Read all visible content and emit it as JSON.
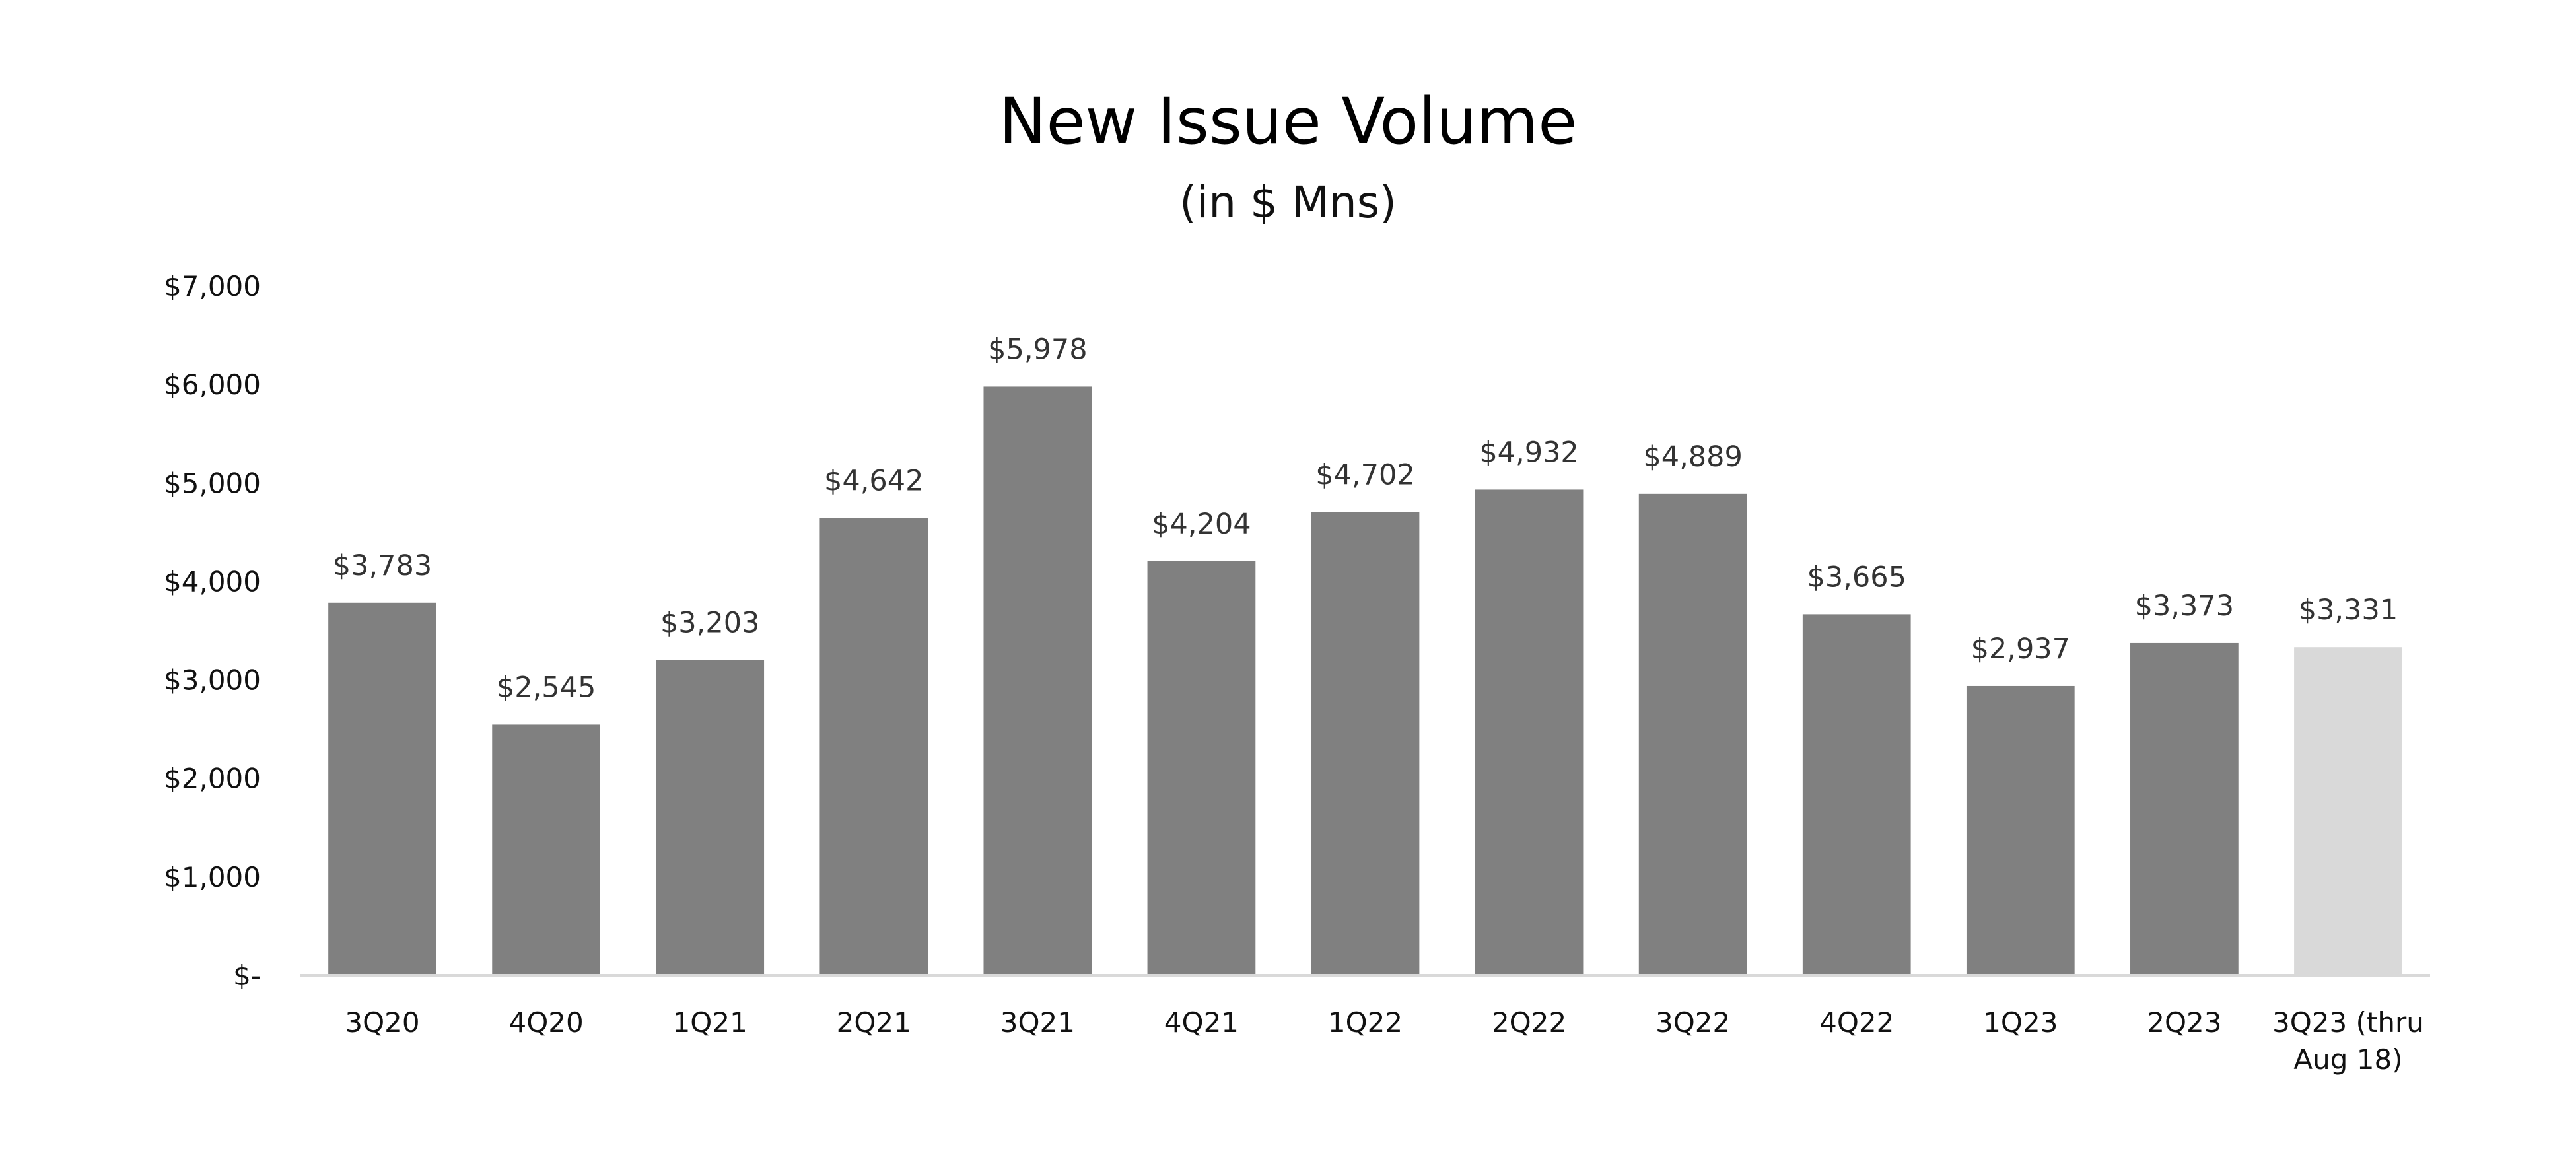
{
  "chart_data": {
    "type": "bar",
    "title": "New Issue Volume",
    "subtitle": "(in $ Mns)",
    "xlabel": "",
    "ylabel": "",
    "ylim": [
      0,
      7000
    ],
    "grid": false,
    "legend": "none",
    "y_ticks": [
      {
        "value": 0,
        "label": "$-"
      },
      {
        "value": 1000,
        "label": "$1,000"
      },
      {
        "value": 2000,
        "label": "$2,000"
      },
      {
        "value": 3000,
        "label": "$3,000"
      },
      {
        "value": 4000,
        "label": "$4,000"
      },
      {
        "value": 5000,
        "label": "$5,000"
      },
      {
        "value": 6000,
        "label": "$6,000"
      },
      {
        "value": 7000,
        "label": "$7,000"
      }
    ],
    "bars": [
      {
        "category": "3Q20",
        "value": 3783,
        "label": "$3,783"
      },
      {
        "category": "4Q20",
        "value": 2545,
        "label": "$2,545"
      },
      {
        "category": "1Q21",
        "value": 3203,
        "label": "$3,203"
      },
      {
        "category": "2Q21",
        "value": 4642,
        "label": "$4,642"
      },
      {
        "category": "3Q21",
        "value": 5978,
        "label": "$5,978"
      },
      {
        "category": "4Q21",
        "value": 4204,
        "label": "$4,204"
      },
      {
        "category": "1Q22",
        "value": 4702,
        "label": "$4,702"
      },
      {
        "category": "2Q22",
        "value": 4932,
        "label": "$4,932"
      },
      {
        "category": "3Q22",
        "value": 4889,
        "label": "$4,889"
      },
      {
        "category": "4Q22",
        "value": 3665,
        "label": "$3,665"
      },
      {
        "category": "1Q23",
        "value": 2937,
        "label": "$2,937"
      },
      {
        "category": "2Q23",
        "value": 3373,
        "label": "$3,373"
      },
      {
        "category": "3Q23 (thru Aug 18)",
        "value": 3331,
        "label": "$3,331",
        "category_lines": [
          "3Q23 (thru",
          "Aug 18)"
        ]
      }
    ],
    "colors": {
      "bar": "#808080",
      "bar_partial": "#d9d9d9",
      "axis": "#d9d9d9"
    }
  }
}
